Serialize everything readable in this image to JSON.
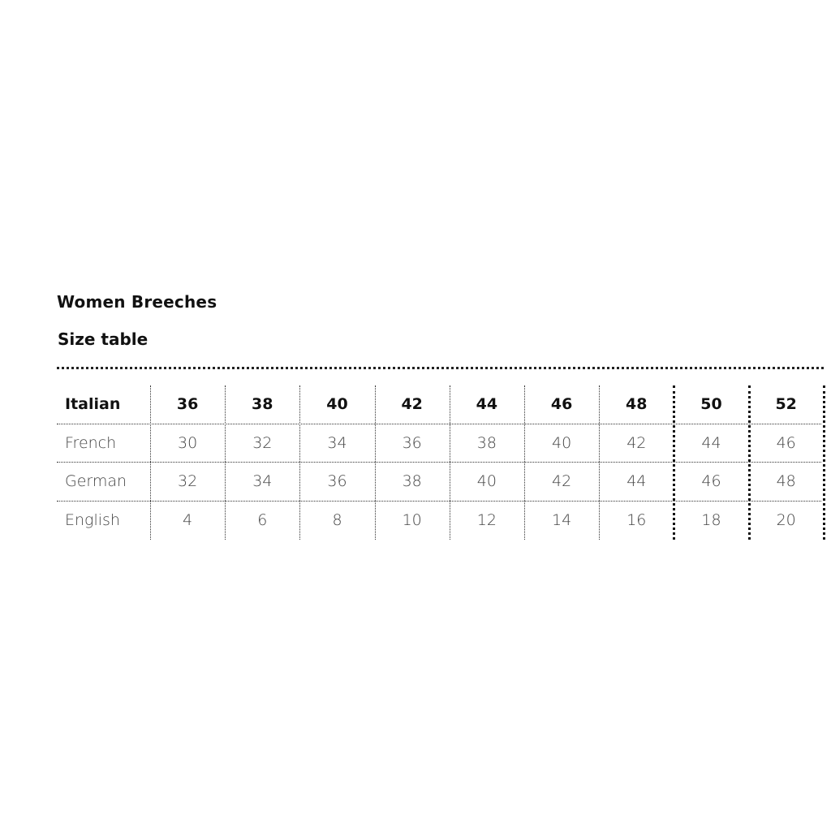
{
  "title": "Women Breeches",
  "subtitle": "Size table",
  "table": {
    "header": {
      "label": "Italian",
      "values": [
        "36",
        "38",
        "40",
        "42",
        "44",
        "46",
        "48",
        "50",
        "52"
      ]
    },
    "rows": [
      {
        "label": "French",
        "values": [
          "30",
          "32",
          "34",
          "36",
          "38",
          "40",
          "42",
          "44",
          "46"
        ]
      },
      {
        "label": "German",
        "values": [
          "32",
          "34",
          "36",
          "38",
          "40",
          "42",
          "44",
          "46",
          "48"
        ]
      },
      {
        "label": "English",
        "values": [
          "4",
          "6",
          "8",
          "10",
          "12",
          "14",
          "16",
          "18",
          "20"
        ]
      }
    ]
  }
}
